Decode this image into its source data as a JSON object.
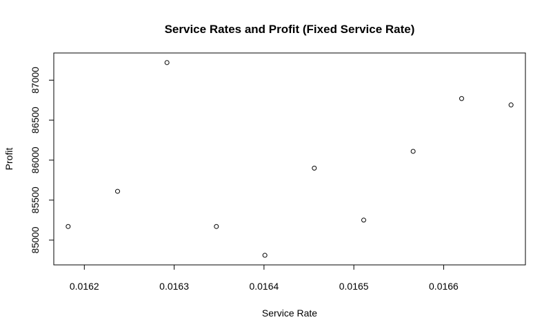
{
  "chart_data": {
    "type": "scatter",
    "title": "Service Rates and Profit (Fixed Service Rate)",
    "xlabel": "Service Rate",
    "ylabel": "Profit",
    "x": [
      0.016182,
      0.016237,
      0.016292,
      0.016347,
      0.016401,
      0.016456,
      0.016511,
      0.016566,
      0.01662,
      0.016675
    ],
    "y": [
      85170,
      85610,
      87220,
      85170,
      84810,
      85900,
      85250,
      86110,
      86770,
      86690
    ],
    "xlim": [
      0.016166,
      0.016691
    ],
    "ylim": [
      84690,
      87340
    ],
    "xticks": [
      0.0162,
      0.0163,
      0.0164,
      0.0165,
      0.0166
    ],
    "xtick_labels": [
      "0.0162",
      "0.0163",
      "0.0164",
      "0.0165",
      "0.0166"
    ],
    "yticks": [
      85000,
      85500,
      86000,
      86500,
      87000
    ],
    "ytick_labels": [
      "85000",
      "85500",
      "86000",
      "86500",
      "87000"
    ],
    "grid": false,
    "legend": "none",
    "colors": {
      "background": "#ffffff",
      "axis": "#000000",
      "point_stroke": "#000000",
      "point_fill": "#ffffff"
    }
  }
}
